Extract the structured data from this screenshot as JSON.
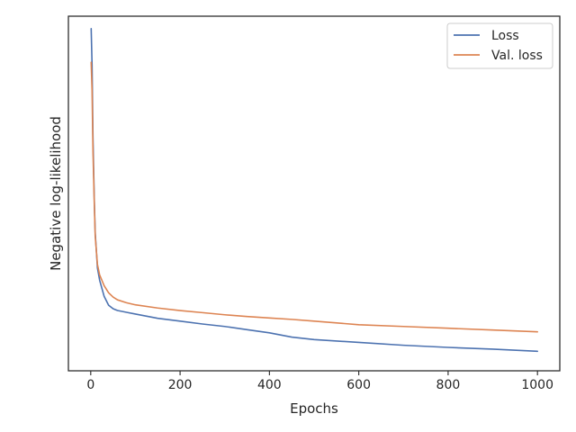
{
  "chart_data": {
    "type": "line",
    "xlabel": "Epochs",
    "ylabel": "Negative log-likelihood",
    "xlim": [
      -50,
      1050
    ],
    "ylim": [
      0,
      1
    ],
    "x_ticks": [
      0,
      200,
      400,
      600,
      800,
      1000
    ],
    "x_tick_labels": [
      "0",
      "200",
      "400",
      "600",
      "800",
      "1000"
    ],
    "y_ticks_labeled": false,
    "grid": false,
    "legend_position": "top-right",
    "series": [
      {
        "name": "Loss",
        "color": "#4c72b0",
        "x": [
          1,
          3,
          5,
          8,
          10,
          15,
          20,
          30,
          40,
          50,
          60,
          80,
          100,
          150,
          200,
          250,
          300,
          350,
          400,
          450,
          500,
          600,
          700,
          800,
          900,
          1000
        ],
        "y": [
          0.965,
          0.86,
          0.66,
          0.48,
          0.39,
          0.29,
          0.255,
          0.21,
          0.185,
          0.175,
          0.17,
          0.165,
          0.16,
          0.148,
          0.14,
          0.132,
          0.125,
          0.116,
          0.107,
          0.095,
          0.088,
          0.08,
          0.072,
          0.066,
          0.061,
          0.055
        ]
      },
      {
        "name": "Val. loss",
        "color": "#dd8452",
        "x": [
          1,
          3,
          5,
          8,
          10,
          15,
          20,
          30,
          40,
          50,
          60,
          80,
          100,
          150,
          200,
          250,
          300,
          350,
          400,
          450,
          500,
          600,
          700,
          800,
          900,
          1000
        ],
        "y": [
          0.87,
          0.79,
          0.62,
          0.47,
          0.38,
          0.3,
          0.27,
          0.24,
          0.22,
          0.208,
          0.2,
          0.192,
          0.186,
          0.177,
          0.17,
          0.164,
          0.158,
          0.153,
          0.149,
          0.145,
          0.14,
          0.13,
          0.125,
          0.12,
          0.115,
          0.11
        ]
      }
    ]
  }
}
